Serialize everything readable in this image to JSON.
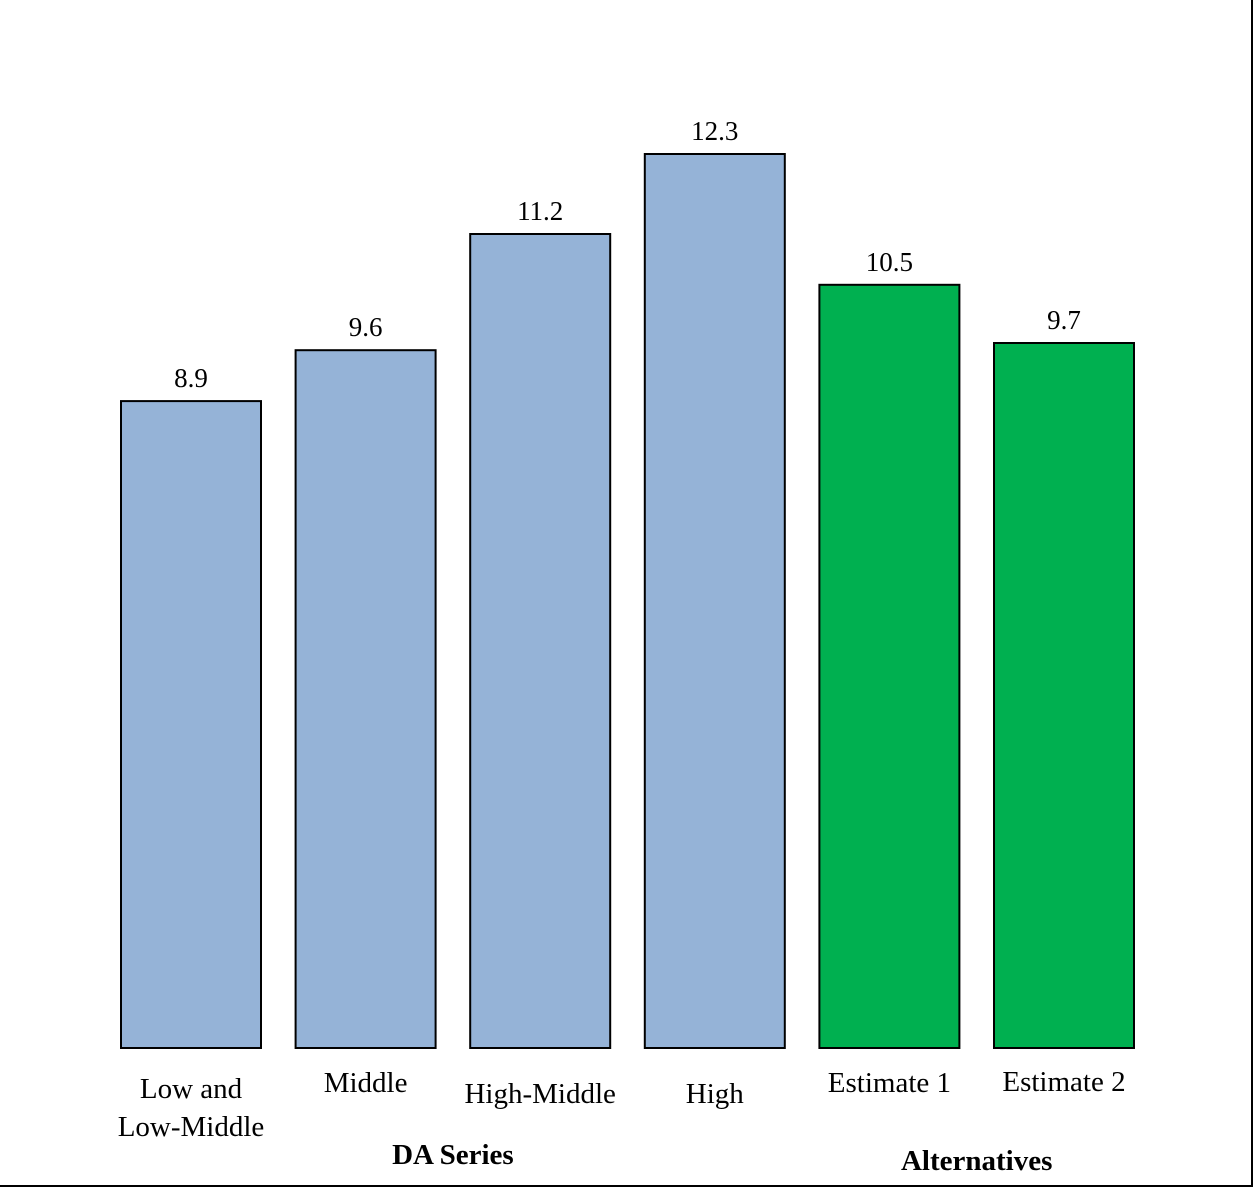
{
  "chart_data": {
    "type": "bar",
    "categories": [
      [
        "Low and",
        "Low-Middle"
      ],
      [
        "Middle"
      ],
      [
        "High-Middle"
      ],
      [
        "High"
      ],
      [
        "Estimate 1"
      ],
      [
        "Estimate 2"
      ]
    ],
    "values": [
      8.9,
      9.6,
      11.2,
      12.3,
      10.5,
      9.7
    ],
    "value_labels": [
      "8.9",
      "9.6",
      "11.2",
      "12.3",
      "10.5",
      "9.7"
    ],
    "bar_colors": [
      "#95b3d7",
      "#95b3d7",
      "#95b3d7",
      "#95b3d7",
      "#00b050",
      "#00b050"
    ],
    "groups": [
      {
        "label": "DA Series",
        "categories": [
          0,
          1,
          2,
          3
        ]
      },
      {
        "label": "Alternatives",
        "categories": [
          4,
          5
        ]
      }
    ],
    "ylim": [
      0,
      12.3
    ],
    "grid": false,
    "legend": "none"
  }
}
